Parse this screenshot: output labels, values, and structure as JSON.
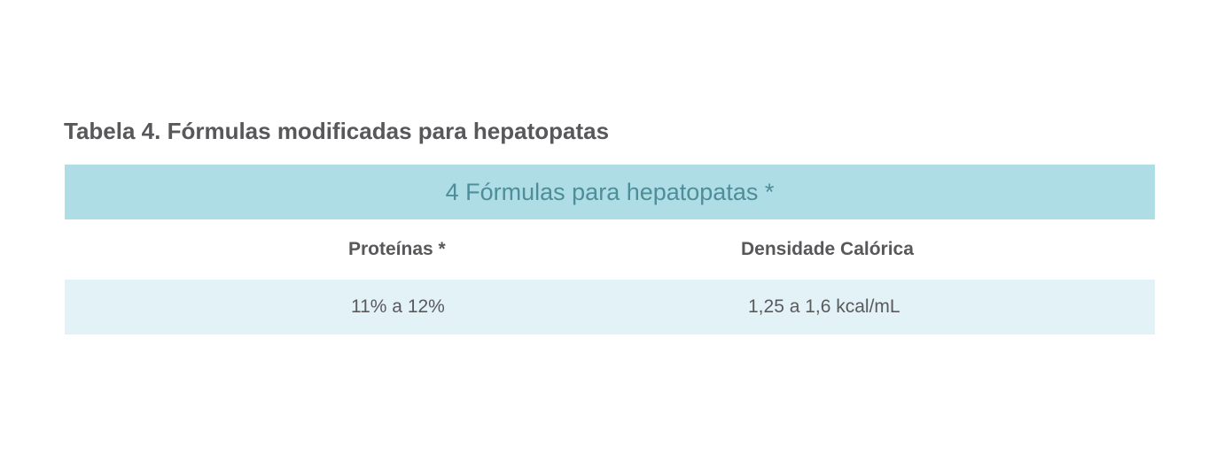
{
  "caption": "Tabela 4. Fórmulas modificadas para hepatopatas",
  "table": {
    "banner": "4 Fórmulas para hepatopatas *",
    "columns": [
      "Proteínas *",
      "Densidade Calórica"
    ],
    "rows": [
      [
        "11% a 12%",
        "1,25 a 1,6 kcal/mL"
      ]
    ]
  },
  "colors": {
    "banner_bg": "#afdde5",
    "banner_text": "#4e8e99",
    "row_bg": "#e2f2f7",
    "text": "#58585b"
  }
}
